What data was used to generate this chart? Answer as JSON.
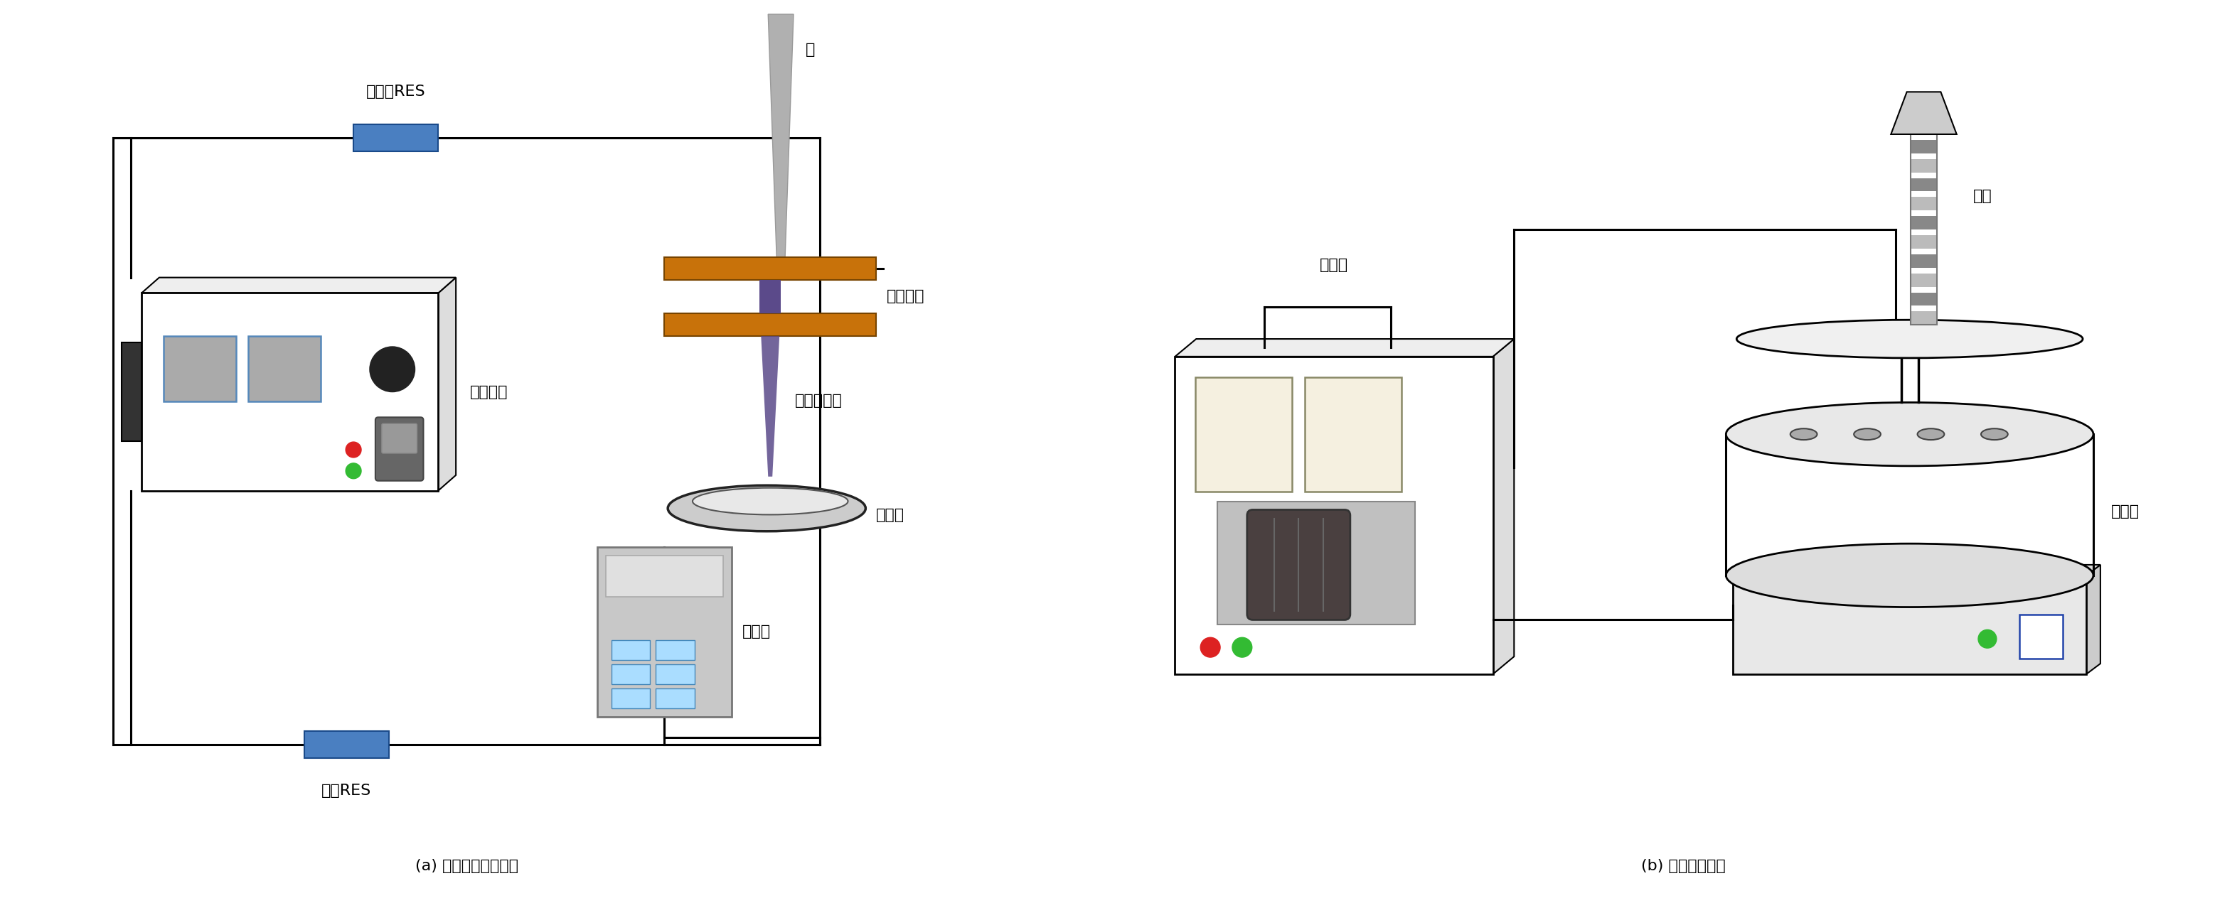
{
  "fig_width": 31.46,
  "fig_height": 12.71,
  "bg_color": "#ffffff",
  "line_color": "#000000",
  "label_a": "(a) 辉光放电等离子体",
  "label_b": "(b) 光化学反应仪",
  "text_zhenliuqi": "镇流器RES",
  "text_jiaoyan": "检验RES",
  "text_wenyuan": "稳电压源",
  "text_wanyongbiao": "万用表",
  "text_zhen": "针",
  "text_yinjixunhuan": "阴极循环",
  "text_denglizisheliu": "等离子射流",
  "text_fanyingqi_a": "反应器",
  "text_kongzhiqi": "控制器",
  "text_qideng": "氙灯",
  "text_fanyingqi_b": "反应器",
  "res_color": "#4a7fc1",
  "orange_color": "#c8720a",
  "plasma_color": "#5b4a8a",
  "needle_color": "#b0b0b0",
  "led_red": "#dd2222",
  "led_green": "#33bb33",
  "led_blue_rect": "#4488cc"
}
